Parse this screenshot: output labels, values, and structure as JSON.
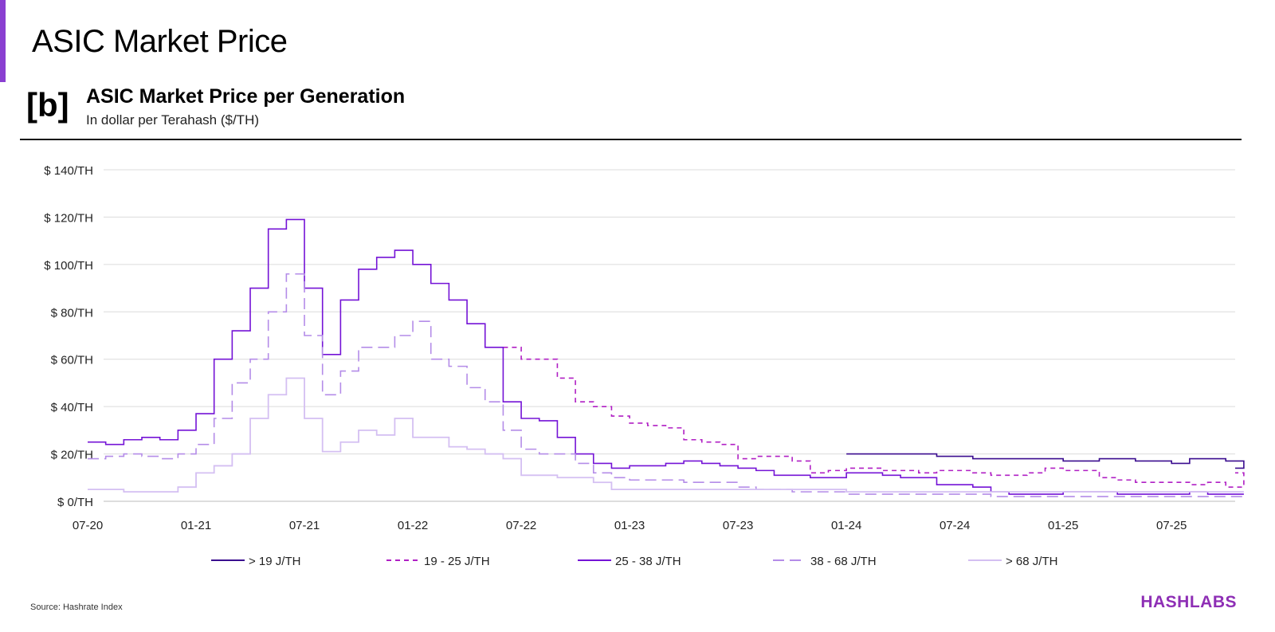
{
  "header": {
    "title": "ASIC Market Price",
    "tag": "[b]",
    "subtitle": "ASIC Market Price per Generation",
    "unit": "In dollar per Terahash ($/TH)"
  },
  "footer": {
    "source": "Source: Hashrate Index",
    "brand": "HASHLABS"
  },
  "chart_data": {
    "type": "line",
    "title": "ASIC Market Price per Generation",
    "ylabel": "In dollar per Terahash ($/TH)",
    "ylim": [
      0,
      140
    ],
    "yticks": [
      0,
      20,
      40,
      60,
      80,
      100,
      120,
      140
    ],
    "ytick_labels": [
      "$ 0/TH",
      "$ 20/TH",
      "$ 40/TH",
      "$ 60/TH",
      "$ 80/TH",
      "$ 100/TH",
      "$ 120/TH",
      "$ 140/TH"
    ],
    "xticks": [
      "2020-07",
      "2021-01",
      "2021-07",
      "2022-01",
      "2022-07",
      "2023-01",
      "2023-07",
      "2024-01",
      "2024-07",
      "2025-01",
      "2025-07"
    ],
    "xtick_labels": [
      "07-20",
      "01-21",
      "07-21",
      "01-22",
      "07-22",
      "01-23",
      "07-23",
      "01-24",
      "07-24",
      "01-25",
      "07-25"
    ],
    "x_start": "2020-07",
    "x_end": "2025-11",
    "grid": true,
    "legend": "bottom",
    "series": [
      {
        "name": "> 19 J/TH",
        "color": "#3a0c8f",
        "dash": "solid",
        "values": [
          null,
          null,
          null,
          null,
          null,
          null,
          null,
          null,
          null,
          null,
          null,
          null,
          null,
          null,
          null,
          null,
          null,
          null,
          null,
          null,
          null,
          null,
          null,
          null,
          null,
          null,
          null,
          null,
          null,
          null,
          null,
          null,
          null,
          null,
          null,
          null,
          null,
          null,
          null,
          null,
          null,
          null,
          20,
          20,
          20,
          20,
          20,
          19,
          19,
          18,
          18,
          18,
          18,
          18,
          17,
          17,
          18,
          18,
          17,
          17,
          16,
          18,
          18,
          17,
          14
        ]
      },
      {
        "name": "19 - 25 J/TH",
        "color": "#b01fc4",
        "dash": "dashed",
        "values": [
          null,
          null,
          null,
          null,
          null,
          null,
          null,
          null,
          null,
          null,
          null,
          null,
          null,
          null,
          null,
          null,
          null,
          null,
          null,
          null,
          null,
          null,
          null,
          65,
          60,
          60,
          52,
          42,
          40,
          36,
          33,
          32,
          31,
          26,
          25,
          24,
          18,
          19,
          19,
          17,
          12,
          13,
          14,
          14,
          13,
          13,
          12,
          13,
          13,
          12,
          11,
          11,
          12,
          14,
          13,
          13,
          10,
          9,
          8,
          8,
          8,
          7,
          8,
          6,
          12
        ]
      },
      {
        "name": "25 - 38 J/TH",
        "color": "#7413d6",
        "dash": "solid",
        "values": [
          25,
          24,
          26,
          27,
          26,
          30,
          37,
          60,
          72,
          90,
          115,
          119,
          90,
          62,
          85,
          98,
          103,
          106,
          100,
          92,
          85,
          75,
          65,
          42,
          35,
          34,
          27,
          20,
          16,
          14,
          15,
          15,
          16,
          17,
          16,
          15,
          14,
          13,
          11,
          11,
          10,
          10,
          12,
          12,
          11,
          10,
          10,
          7,
          7,
          6,
          4,
          3,
          3,
          3,
          4,
          4,
          4,
          3,
          3,
          3,
          3,
          4,
          3,
          3,
          3
        ]
      },
      {
        "name": "38 - 68 J/TH",
        "color": "#b48ce8",
        "dash": "longdash",
        "values": [
          18,
          19,
          20,
          19,
          18,
          20,
          24,
          35,
          50,
          60,
          80,
          96,
          70,
          45,
          55,
          65,
          65,
          70,
          76,
          60,
          57,
          48,
          42,
          30,
          22,
          20,
          20,
          16,
          12,
          10,
          9,
          9,
          9,
          8,
          8,
          8,
          6,
          5,
          5,
          4,
          4,
          4,
          3,
          3,
          3,
          3,
          3,
          3,
          3,
          3,
          2,
          2,
          2,
          2,
          2,
          2,
          2,
          2,
          2,
          2,
          2,
          2,
          2,
          2,
          2
        ]
      },
      {
        "name": "> 68 J/TH",
        "color": "#d4bff2",
        "dash": "solid",
        "values": [
          5,
          5,
          4,
          4,
          4,
          6,
          12,
          15,
          20,
          35,
          45,
          52,
          35,
          21,
          25,
          30,
          28,
          35,
          27,
          27,
          23,
          22,
          20,
          18,
          11,
          11,
          10,
          10,
          8,
          5,
          5,
          5,
          5,
          5,
          5,
          5,
          5,
          5,
          5,
          5,
          5,
          5,
          4,
          4,
          4,
          4,
          4,
          4,
          4,
          4,
          4,
          4,
          4,
          4,
          4,
          4,
          4,
          4,
          4,
          4,
          4,
          4,
          4,
          4,
          4
        ]
      }
    ]
  }
}
